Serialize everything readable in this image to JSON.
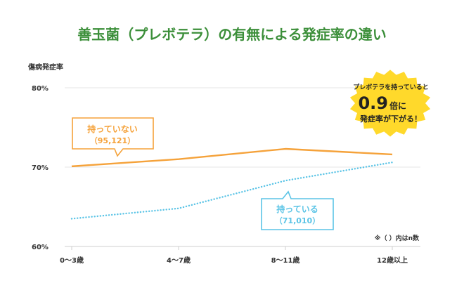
{
  "colors": {
    "title": "#3c8f3a",
    "orange": "#f5a23a",
    "blue": "#5bc4e6",
    "badge": "#ffd92b",
    "axis_text": "#333333",
    "grid": "#e6e6e6"
  },
  "chart_data": {
    "type": "line",
    "title": "善玉菌（プレボテラ）の有無による発症率の違い",
    "ylabel": "傷病発症率",
    "ylim": [
      60,
      80
    ],
    "y_ticks": [
      "80%",
      "70%",
      "60%"
    ],
    "y_tick_values": [
      80,
      70,
      60
    ],
    "categories": [
      "0〜3歳",
      "4〜7歳",
      "8〜11歳",
      "12歳以上"
    ],
    "series": [
      {
        "name": "持っていない",
        "n": "（95,121）",
        "color": "#f5a23a",
        "style": "solid",
        "values": [
          70.1,
          71.0,
          72.3,
          71.6
        ]
      },
      {
        "name": "持っている",
        "n": "（71,010）",
        "color": "#5bc4e6",
        "style": "dotted",
        "values": [
          63.5,
          64.8,
          68.3,
          70.6
        ]
      }
    ],
    "note": "※（ ）内はn数",
    "badge": {
      "line1": "プレボテラを持っていると",
      "big": "0.9",
      "big_suffix": "倍に",
      "line3": "発症率が下がる！"
    },
    "grid": true
  }
}
